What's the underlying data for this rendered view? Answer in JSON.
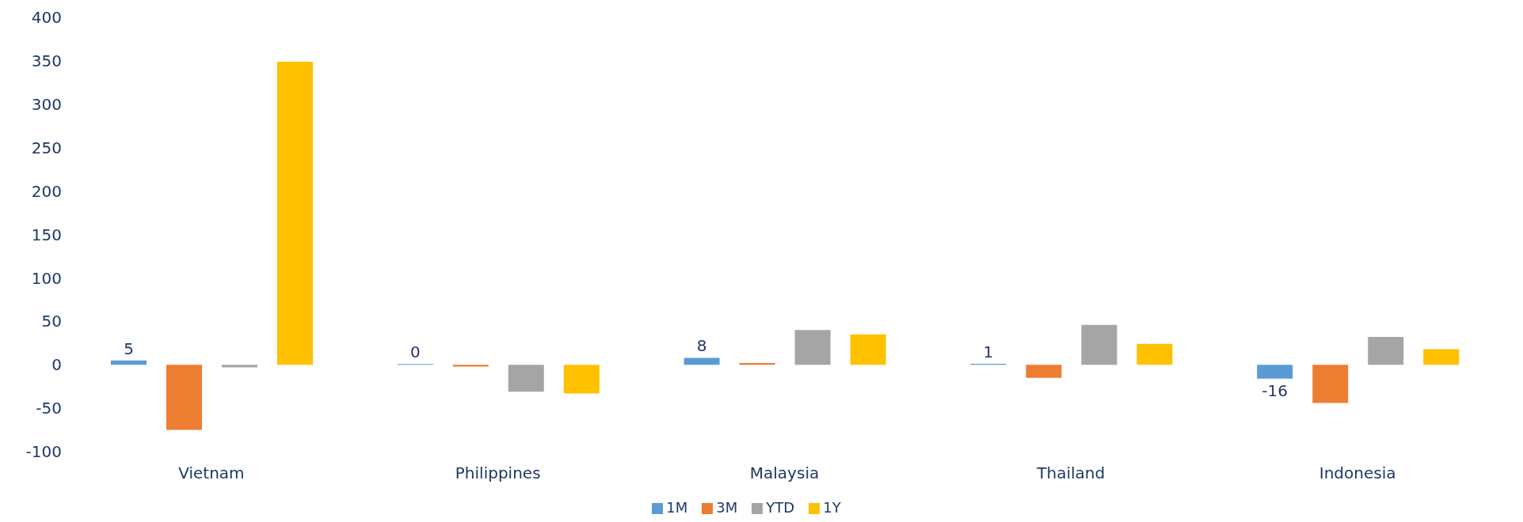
{
  "chart_data": {
    "type": "bar",
    "categories": [
      "Vietnam",
      "Philippines",
      "Malaysia",
      "Thailand",
      "Indonesia"
    ],
    "series": [
      {
        "name": "1M",
        "color": "#5b9bd5",
        "values": [
          5,
          0,
          8,
          1,
          -16
        ],
        "value_labels": [
          "5",
          "0",
          "8",
          "1",
          "-16"
        ]
      },
      {
        "name": "3M",
        "color": "#ed7d31",
        "values": [
          -75,
          -2,
          2,
          -15,
          -44
        ]
      },
      {
        "name": "YTD",
        "color": "#a5a5a5",
        "values": [
          -3,
          -31,
          40,
          46,
          32
        ]
      },
      {
        "name": "1Y",
        "color": "#ffc000",
        "values": [
          349,
          -33,
          35,
          24,
          18
        ]
      }
    ],
    "ylim": [
      -100,
      400
    ],
    "yticks": [
      -100,
      -50,
      0,
      50,
      100,
      150,
      200,
      250,
      300,
      350,
      400
    ],
    "grid": false,
    "legend": "bottom"
  }
}
